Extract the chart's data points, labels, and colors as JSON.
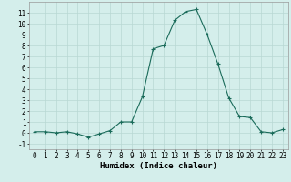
{
  "x": [
    0,
    1,
    2,
    3,
    4,
    5,
    6,
    7,
    8,
    9,
    10,
    11,
    12,
    13,
    14,
    15,
    16,
    17,
    18,
    19,
    20,
    21,
    22,
    23
  ],
  "y": [
    0.1,
    0.1,
    0.0,
    0.1,
    -0.1,
    -0.4,
    -0.1,
    0.2,
    1.0,
    1.0,
    3.3,
    7.7,
    8.0,
    10.3,
    11.1,
    11.3,
    9.0,
    6.3,
    3.2,
    1.5,
    1.4,
    0.1,
    0.0,
    0.3
  ],
  "line_color": "#1a6b5a",
  "marker": "+",
  "markersize": 3,
  "linewidth": 0.8,
  "markeredgewidth": 0.8,
  "xlabel": "Humidex (Indice chaleur)",
  "xlim": [
    -0.5,
    23.5
  ],
  "ylim": [
    -1.5,
    12.0
  ],
  "xticks": [
    0,
    1,
    2,
    3,
    4,
    5,
    6,
    7,
    8,
    9,
    10,
    11,
    12,
    13,
    14,
    15,
    16,
    17,
    18,
    19,
    20,
    21,
    22,
    23
  ],
  "yticks": [
    -1,
    0,
    1,
    2,
    3,
    4,
    5,
    6,
    7,
    8,
    9,
    10,
    11
  ],
  "bg_color": "#d4eeeb",
  "grid_color": "#b8d8d4",
  "xlabel_fontsize": 6.5,
  "tick_fontsize": 5.5
}
